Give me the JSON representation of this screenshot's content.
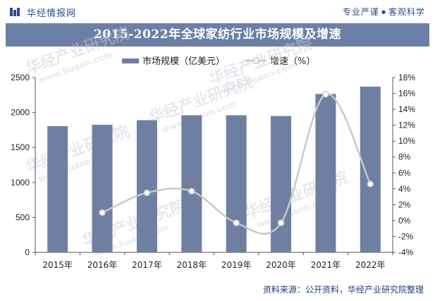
{
  "header": {
    "logo_text": "华经情报网",
    "slogan_left": "专业严谨",
    "slogan_dot": "●",
    "slogan_right": "客观科学"
  },
  "chart_data": {
    "type": "bar",
    "title": "2015-2022年全球家纺行业市场规模及增速",
    "categories": [
      "2015年",
      "2016年",
      "2017年",
      "2018年",
      "2019年",
      "2020年",
      "2021年",
      "2022年"
    ],
    "series": [
      {
        "name": "市场规模（亿美元）",
        "type": "bar",
        "axis": "left",
        "color": "#6f7fa2",
        "values": [
          1805,
          1825,
          1890,
          1960,
          1960,
          1950,
          2265,
          2370
        ]
      },
      {
        "name": "增速（%）",
        "type": "line",
        "axis": "right",
        "color": "#c8c8c8",
        "values": [
          null,
          1.0,
          3.5,
          3.7,
          -0.3,
          -0.3,
          15.9,
          4.6
        ]
      }
    ],
    "y_left": {
      "min": 0,
      "max": 2500,
      "ticks": [
        "0",
        "500",
        "1000",
        "1500",
        "2000",
        "2500"
      ]
    },
    "y_right": {
      "min": -4,
      "max": 18,
      "ticks": [
        "-4%",
        "-2%",
        "0%",
        "2%",
        "4%",
        "6%",
        "8%",
        "10%",
        "12%",
        "14%",
        "16%",
        "18%"
      ]
    },
    "grid": false,
    "legend_position": "top-center"
  },
  "watermark": {
    "cn": "华经产业研究院",
    "en": "www.huaon.com"
  },
  "source": "资料来源：公开资料，华经产业研究院整理"
}
